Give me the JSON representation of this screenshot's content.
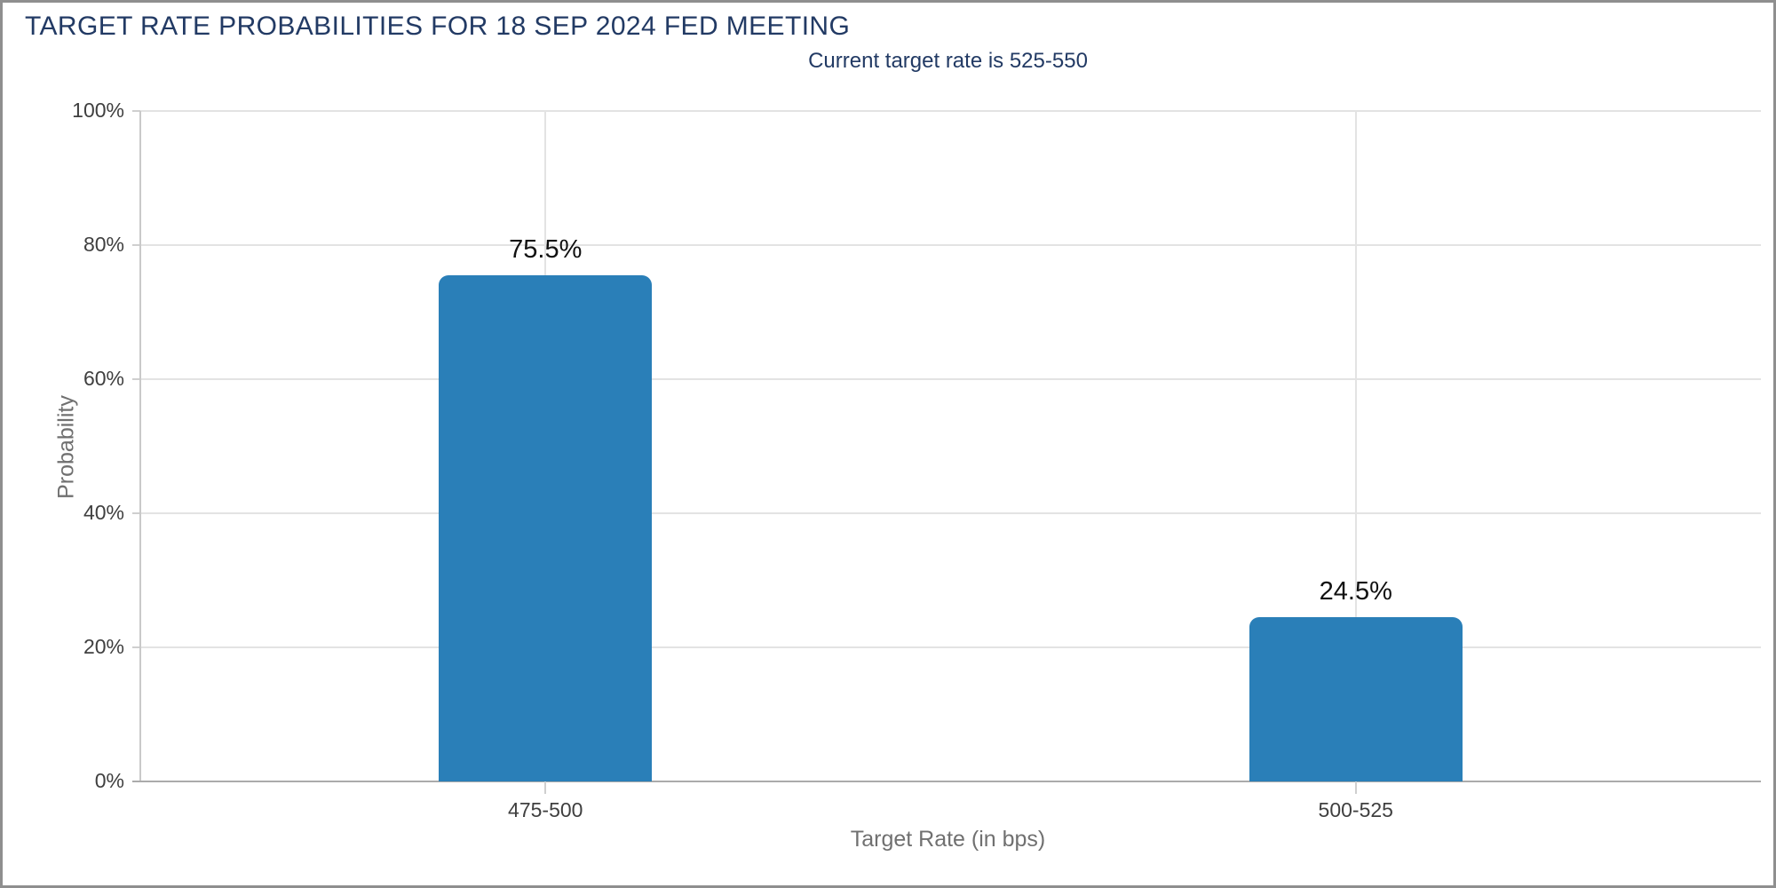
{
  "chart_data": {
    "type": "bar",
    "title": "TARGET RATE PROBABILITIES FOR 18 SEP 2024 FED MEETING",
    "subtitle": "Current target rate is 525-550",
    "categories": [
      "475-500",
      "500-525"
    ],
    "values": [
      75.5,
      24.5
    ],
    "value_labels": [
      "75.5%",
      "24.5%"
    ],
    "xlabel": "Target Rate (in bps)",
    "ylabel": "Probability",
    "ylim": [
      0,
      100
    ],
    "ytick_step": 20,
    "ytick_labels": [
      "0%",
      "20%",
      "40%",
      "60%",
      "80%",
      "100%"
    ],
    "grid": true,
    "legend": "none",
    "colors": {
      "bar": "#2a7fb8",
      "title": "#223a64",
      "subtitle": "#223a64",
      "tick_label": "#3f3f3f",
      "axis_title": "#707070",
      "gridline": "#e3e3e3",
      "y_axis_line": "#c9c9c9",
      "x_axis_line": "#ababab",
      "tick_mark": "#cfcfcf",
      "value_label": "#111111",
      "window_border": "#8f8f8f"
    }
  }
}
